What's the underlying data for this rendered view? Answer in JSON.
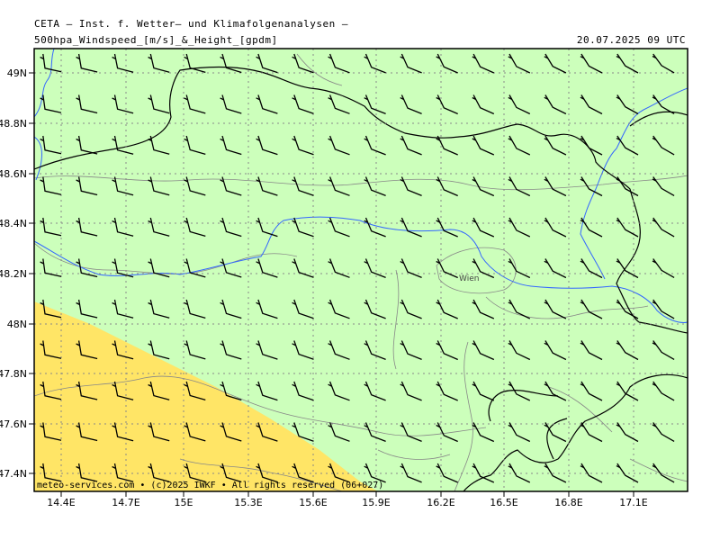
{
  "header": {
    "line1": "CETA – Inst. f. Wetter– und Klimafolgenanalysen –",
    "line2": "500hpa_Windspeed_[m/s]_&_Height_[gpdm]",
    "valid_time": "20.07.2025 09 UTC"
  },
  "map": {
    "longitude_labels": [
      "14.4E",
      "14.7E",
      "15E",
      "15.3E",
      "15.6E",
      "15.9E",
      "16.2E",
      "16.5E",
      "16.8E",
      "17.1E"
    ],
    "latitude_labels": [
      "49N",
      "48.8N",
      "48.6N",
      "48.4N",
      "48.2N",
      "48N",
      "47.8N",
      "47.6N",
      "47.4N"
    ],
    "city_label": "Wien",
    "copyright": "meteo-services.com • (c)2025 IWKF • All rights reserved (06+027)",
    "wind_barb_direction": "westerly",
    "colors": {
      "base_fill": "#ccffbb",
      "high_wind_fill": "#ffe566",
      "border": "#000000",
      "rivers": "#3366ff",
      "regions": "#888888",
      "grid": "#888888"
    }
  }
}
